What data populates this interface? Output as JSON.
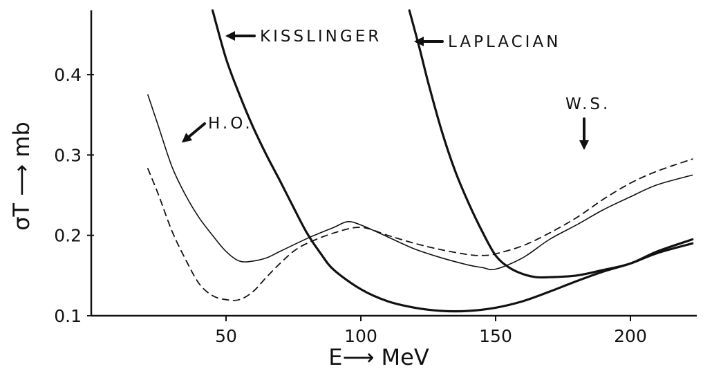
{
  "chart_data": {
    "type": "line",
    "title": "",
    "xlabel": "E⟶ MeV",
    "ylabel": "σT ⟶ mb",
    "xlim": [
      0,
      225
    ],
    "ylim": [
      0.1,
      0.48
    ],
    "x_ticks": [
      {
        "value": 50,
        "label": "50"
      },
      {
        "value": 100,
        "label": "100"
      },
      {
        "value": 150,
        "label": "150"
      },
      {
        "value": 200,
        "label": "200"
      }
    ],
    "y_ticks": [
      {
        "value": 0.1,
        "label": "0.1"
      },
      {
        "value": 0.2,
        "label": "0.2"
      },
      {
        "value": 0.3,
        "label": "0.3"
      },
      {
        "value": 0.4,
        "label": "0.4"
      }
    ],
    "grid": false,
    "series": [
      {
        "name": "H.O.",
        "style": "solid-thin",
        "points": [
          [
            21,
            0.375
          ],
          [
            25,
            0.335
          ],
          [
            30,
            0.285
          ],
          [
            35,
            0.25
          ],
          [
            40,
            0.222
          ],
          [
            45,
            0.2
          ],
          [
            50,
            0.18
          ],
          [
            55,
            0.168
          ],
          [
            60,
            0.168
          ],
          [
            65,
            0.172
          ],
          [
            70,
            0.18
          ],
          [
            80,
            0.196
          ],
          [
            90,
            0.21
          ],
          [
            95,
            0.217
          ],
          [
            100,
            0.213
          ],
          [
            110,
            0.198
          ],
          [
            120,
            0.183
          ],
          [
            130,
            0.172
          ],
          [
            140,
            0.163
          ],
          [
            145,
            0.16
          ],
          [
            150,
            0.158
          ],
          [
            160,
            0.172
          ],
          [
            170,
            0.195
          ],
          [
            180,
            0.213
          ],
          [
            190,
            0.232
          ],
          [
            200,
            0.248
          ],
          [
            210,
            0.263
          ],
          [
            223,
            0.275
          ]
        ]
      },
      {
        "name": "W.S.",
        "style": "dashed",
        "points": [
          [
            21,
            0.283
          ],
          [
            25,
            0.25
          ],
          [
            30,
            0.205
          ],
          [
            35,
            0.17
          ],
          [
            40,
            0.14
          ],
          [
            45,
            0.125
          ],
          [
            50,
            0.12
          ],
          [
            55,
            0.12
          ],
          [
            60,
            0.13
          ],
          [
            65,
            0.148
          ],
          [
            70,
            0.165
          ],
          [
            75,
            0.18
          ],
          [
            80,
            0.19
          ],
          [
            90,
            0.203
          ],
          [
            100,
            0.21
          ],
          [
            110,
            0.2
          ],
          [
            120,
            0.19
          ],
          [
            130,
            0.182
          ],
          [
            140,
            0.176
          ],
          [
            145,
            0.175
          ],
          [
            150,
            0.177
          ],
          [
            160,
            0.187
          ],
          [
            170,
            0.203
          ],
          [
            180,
            0.222
          ],
          [
            190,
            0.245
          ],
          [
            200,
            0.265
          ],
          [
            210,
            0.28
          ],
          [
            223,
            0.295
          ]
        ]
      },
      {
        "name": "KISSLINGER",
        "style": "solid-thick",
        "points": [
          [
            45,
            0.48
          ],
          [
            50,
            0.42
          ],
          [
            55,
            0.375
          ],
          [
            60,
            0.335
          ],
          [
            65,
            0.3
          ],
          [
            70,
            0.268
          ],
          [
            75,
            0.235
          ],
          [
            80,
            0.203
          ],
          [
            85,
            0.178
          ],
          [
            90,
            0.157
          ],
          [
            100,
            0.133
          ],
          [
            110,
            0.118
          ],
          [
            120,
            0.11
          ],
          [
            130,
            0.106
          ],
          [
            140,
            0.106
          ],
          [
            150,
            0.11
          ],
          [
            160,
            0.118
          ],
          [
            170,
            0.13
          ],
          [
            180,
            0.143
          ],
          [
            190,
            0.155
          ],
          [
            200,
            0.165
          ],
          [
            210,
            0.178
          ],
          [
            223,
            0.19
          ]
        ]
      },
      {
        "name": "LAPLACIAN",
        "style": "solid-thick",
        "points": [
          [
            118,
            0.48
          ],
          [
            122,
            0.43
          ],
          [
            125,
            0.39
          ],
          [
            130,
            0.33
          ],
          [
            135,
            0.28
          ],
          [
            140,
            0.24
          ],
          [
            145,
            0.205
          ],
          [
            150,
            0.175
          ],
          [
            155,
            0.16
          ],
          [
            160,
            0.152
          ],
          [
            165,
            0.148
          ],
          [
            170,
            0.148
          ],
          [
            180,
            0.15
          ],
          [
            190,
            0.157
          ],
          [
            200,
            0.165
          ],
          [
            210,
            0.18
          ],
          [
            223,
            0.195
          ]
        ]
      }
    ],
    "annotations": [
      {
        "text": "KISSLINGER",
        "target_series": "KISSLINGER"
      },
      {
        "text": "LAPLACIAN",
        "target_series": "LAPLACIAN"
      },
      {
        "text": "H.O.",
        "target_series": "H.O."
      },
      {
        "text": "W.S.",
        "target_series": "W.S."
      }
    ]
  }
}
